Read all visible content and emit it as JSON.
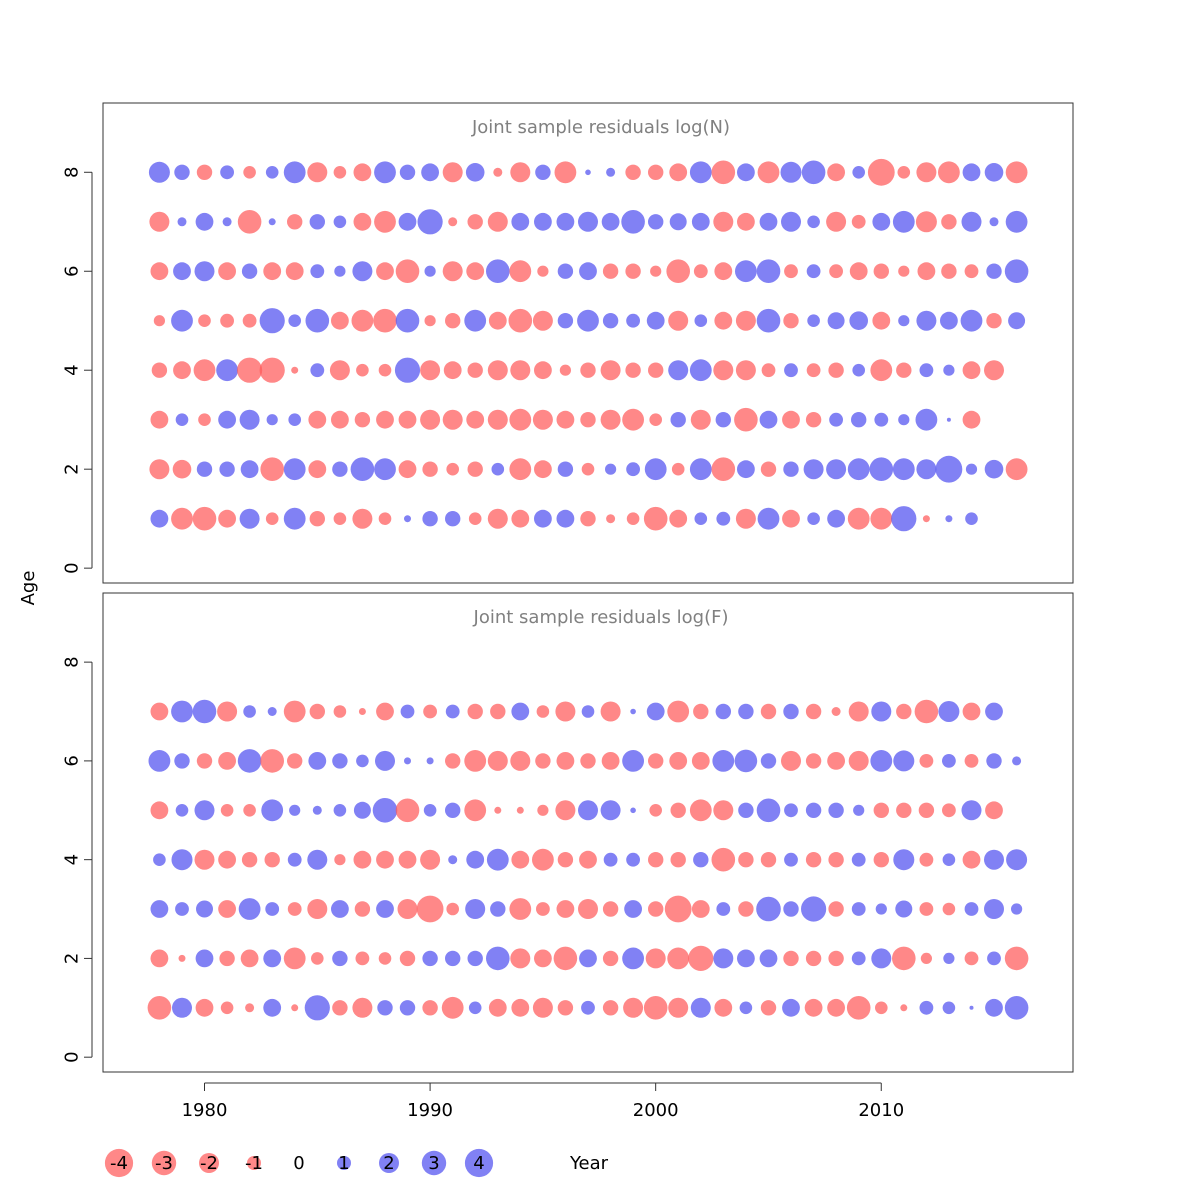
{
  "chart_data": [
    {
      "type": "scatter",
      "subtype": "bubble",
      "title": "Joint sample residuals log(N)",
      "xlabel": "Year",
      "ylabel": "Age",
      "xlim": [
        1975.5,
        2018.5
      ],
      "ylim": [
        -0.3,
        9.4
      ],
      "x_ticks": [
        1980,
        1990,
        2000,
        2010
      ],
      "y_ticks": [
        0,
        2,
        4,
        6,
        8
      ],
      "x": [
        1978,
        1979,
        1980,
        1981,
        1982,
        1983,
        1984,
        1985,
        1986,
        1987,
        1988,
        1989,
        1990,
        1991,
        1992,
        1993,
        1994,
        1995,
        1996,
        1997,
        1998,
        1999,
        2000,
        2001,
        2002,
        2003,
        2004,
        2005,
        2006,
        2007,
        2008,
        2009,
        2010,
        2011,
        2012,
        2013,
        2014,
        2015,
        2016
      ],
      "ages": [
        1,
        2,
        3,
        4,
        5,
        6,
        7,
        8
      ],
      "residuals": [
        [
          2,
          -3,
          -3.5,
          -2,
          2.5,
          -1,
          3,
          -1.5,
          -1,
          -2.5,
          -1,
          0.3,
          1.5,
          1.5,
          -1,
          -2.5,
          -2,
          2,
          2,
          -1.5,
          -0.5,
          -1,
          -3.5,
          -2,
          1,
          1.2,
          -2.5,
          3,
          -2,
          1,
          2,
          -3,
          -3,
          4,
          -0.3,
          0.3,
          1
        ],
        [
          -2.5,
          -2.2,
          1.5,
          1.5,
          2,
          -3.5,
          3,
          -2,
          1.5,
          3.5,
          3,
          -2,
          -1.5,
          -1,
          -1.5,
          1,
          -3,
          -2,
          1.5,
          -1,
          0.8,
          1.2,
          3,
          -1,
          3,
          -3.5,
          2,
          -1.5,
          1.5,
          2.5,
          2.5,
          3,
          3.5,
          3,
          2.5,
          4.5,
          0.8,
          2.2,
          -3
        ],
        [
          -2,
          1,
          -1,
          2,
          2.5,
          0.8,
          1,
          -2,
          -2,
          -1.5,
          -2,
          -2,
          -2.5,
          -2.5,
          -2,
          -2.5,
          -3,
          -2.5,
          -2,
          -1.5,
          -2.5,
          -3,
          -1,
          1.5,
          -2.5,
          1.5,
          -3.5,
          2,
          -2,
          -1.5,
          1.2,
          1.5,
          1.2,
          0.8,
          3,
          0.1,
          -2
        ],
        [
          -1.5,
          -2,
          -3,
          3,
          -4,
          -4,
          -0.3,
          1.2,
          -2.5,
          -1,
          -1,
          4,
          -2.5,
          -2,
          -1.5,
          -2.5,
          -2.5,
          -2,
          -0.8,
          -1.5,
          -2.5,
          -1.5,
          -1.5,
          2.5,
          3,
          -2.5,
          -2.5,
          -1.2,
          1.2,
          -1.2,
          -1.5,
          1,
          -3,
          -1.5,
          1.2,
          0.8,
          -2,
          -2.5
        ],
        [
          -0.8,
          3,
          -1,
          -1.2,
          -1.2,
          4,
          1,
          3.5,
          -2,
          -3,
          -3.5,
          3.5,
          -0.8,
          -1.5,
          3,
          -2,
          -3.5,
          -2.5,
          1.5,
          3,
          1.5,
          1.2,
          2,
          -2.5,
          1,
          -2,
          -2.5,
          3.5,
          -1.5,
          1,
          1.8,
          2.2,
          -2,
          0.8,
          2.5,
          2,
          3,
          -1.5,
          1.8
        ],
        [
          -2,
          2,
          2.5,
          -2,
          1.5,
          -2,
          -2,
          1.2,
          0.8,
          2.5,
          -2,
          -3.5,
          0.8,
          -2.5,
          -2,
          3.5,
          -3,
          -0.8,
          1.5,
          2,
          -1.5,
          -1.5,
          -0.8,
          -3.5,
          -1.2,
          -2,
          3,
          3.5,
          -1.2,
          1.2,
          -1.2,
          -2,
          -1.5,
          -0.8,
          -2,
          -1.5,
          -1.2,
          1.5,
          3.5
        ],
        [
          -2.5,
          0.5,
          2,
          0.5,
          -3.5,
          0.3,
          -1.5,
          1.5,
          1,
          -2,
          -3,
          2,
          4,
          -0.5,
          -1.5,
          -2.5,
          2,
          2,
          2,
          2.5,
          2,
          3.5,
          1.5,
          1.8,
          2,
          -2.5,
          -2,
          2,
          2.5,
          1,
          -2.5,
          -1.2,
          2,
          3,
          -2.8,
          -1.5,
          2.5,
          0.5,
          3
        ],
        [
          2.8,
          1.5,
          -1.5,
          1.2,
          -1,
          1,
          3,
          -2.5,
          -1,
          -2,
          3,
          1.5,
          2,
          -2.5,
          2.2,
          -0.5,
          -2.5,
          1.5,
          -3,
          0.2,
          0.5,
          -1.5,
          -1.5,
          -2,
          3,
          -3.5,
          2,
          -3,
          2.8,
          3.5,
          -2,
          1,
          -4.5,
          -1,
          -2.5,
          -3,
          2,
          2.2,
          -3
        ]
      ]
    },
    {
      "type": "scatter",
      "subtype": "bubble",
      "title": "Joint sample residuals log(F)",
      "xlabel": "Year",
      "ylabel": "Age",
      "xlim": [
        1975.5,
        2018.5
      ],
      "ylim": [
        -0.3,
        9.4
      ],
      "x_ticks": [
        1980,
        1990,
        2000,
        2010
      ],
      "y_ticks": [
        0,
        2,
        4,
        6,
        8
      ],
      "x": [
        1978,
        1979,
        1980,
        1981,
        1982,
        1983,
        1984,
        1985,
        1986,
        1987,
        1988,
        1989,
        1990,
        1991,
        1992,
        1993,
        1994,
        1995,
        1996,
        1997,
        1998,
        1999,
        2000,
        2001,
        2002,
        2003,
        2004,
        2005,
        2006,
        2007,
        2008,
        2009,
        2010,
        2011,
        2012,
        2013,
        2014,
        2015,
        2016
      ],
      "ages": [
        1,
        2,
        3,
        4,
        5,
        6,
        7
      ],
      "residuals": [
        [
          -3.5,
          2.5,
          -2,
          -1,
          -0.5,
          2,
          -0.3,
          4,
          -1.5,
          -2.5,
          1.5,
          1.5,
          -1.5,
          -3,
          1,
          -2,
          -2,
          -2.5,
          -1.5,
          1.2,
          -1.5,
          -2.5,
          -3.5,
          -2.5,
          2.5,
          -2,
          1,
          -1.5,
          2,
          -2,
          -2,
          -3.5,
          -1,
          -0.3,
          1.2,
          1,
          0.1,
          2,
          3.5
        ],
        [
          -2,
          -0.3,
          2,
          -1.5,
          -2,
          2,
          -3,
          -1,
          1.5,
          -1.2,
          -1,
          -1.5,
          1.5,
          1.5,
          1.5,
          3.5,
          -2.5,
          -2,
          -3.5,
          2,
          -1.5,
          3,
          -2.5,
          -3,
          -4,
          2.5,
          2,
          2,
          -1.5,
          -1.5,
          -1.5,
          1.2,
          2.5,
          -3.5,
          -0.8,
          0.8,
          -1.2,
          1.2,
          -3.5
        ],
        [
          2,
          1.2,
          1.8,
          -2,
          3,
          1.2,
          -1.2,
          -2.5,
          2,
          -1.5,
          2,
          -2.5,
          -4.5,
          -1,
          2.5,
          1.5,
          -3,
          -1.2,
          -2,
          -2.5,
          -1.5,
          2,
          -1.5,
          -4.5,
          -2,
          1.2,
          -1.5,
          3.8,
          1.5,
          4,
          -1.5,
          1.2,
          0.8,
          1.8,
          -1.2,
          -1,
          1.2,
          2.5,
          0.8
        ],
        [
          1,
          2.8,
          -2.5,
          -2,
          -1.5,
          -1.5,
          1.2,
          2.5,
          -0.8,
          -2,
          -2,
          -2,
          -2.5,
          0.5,
          2,
          3,
          -2,
          -3,
          -1.5,
          -2,
          1.2,
          1.2,
          -1.5,
          -1.5,
          1.5,
          -3.5,
          -1.5,
          -1.5,
          1.2,
          -1.5,
          -1.5,
          1.2,
          -1.5,
          2.8,
          -1.2,
          1,
          -2,
          2.5,
          2.8
        ],
        [
          -2,
          1,
          2.5,
          -1,
          -1,
          3,
          0.8,
          0.5,
          1,
          1.8,
          3.8,
          -3.5,
          1,
          1.5,
          -3,
          -0.3,
          -0.3,
          -0.8,
          -2.5,
          2.5,
          2.5,
          0.2,
          -1,
          -1.5,
          -3,
          -2.5,
          1.5,
          3.5,
          1.2,
          1.5,
          1.5,
          0.8,
          -1.5,
          -1.5,
          -1.5,
          -1.2,
          2.5,
          -2
        ],
        [
          3,
          1.5,
          -1.5,
          -2,
          3.5,
          -3.5,
          -1.5,
          2,
          1.5,
          1,
          2.5,
          0.3,
          0.3,
          -1.5,
          -3,
          -2.5,
          -2.5,
          -1.5,
          -2,
          -1.5,
          -2,
          3,
          -1.5,
          -2,
          -2,
          3,
          3.2,
          1.5,
          -2.5,
          -1.5,
          -2,
          -2.5,
          3,
          2.8,
          -1.2,
          1.2,
          -1.2,
          1.5,
          0.5
        ],
        [
          -2,
          3,
          3.5,
          -2.5,
          1,
          0.5,
          -3,
          -1.5,
          -1,
          -0.3,
          -2,
          1.2,
          -1.2,
          1.2,
          -1.5,
          -1.5,
          2,
          -1,
          -2.5,
          1,
          -2.5,
          0.2,
          2,
          -3,
          -1.5,
          1.5,
          1.5,
          -1.5,
          1.5,
          -1.5,
          -0.5,
          -2.5,
          2.5,
          -1.5,
          -3.5,
          2.8,
          -2,
          2
        ]
      ]
    }
  ],
  "legend": {
    "values": [
      "-4",
      "-3",
      "-2",
      "-1",
      "0",
      "1",
      "2",
      "3",
      "4"
    ],
    "magnitudes": [
      -4,
      -3,
      -2,
      -1,
      0,
      1,
      2,
      3,
      4
    ]
  },
  "colors": {
    "negative": "#ff5a5a",
    "positive": "#5050f0",
    "title": "#808080",
    "axis": "#333333"
  }
}
